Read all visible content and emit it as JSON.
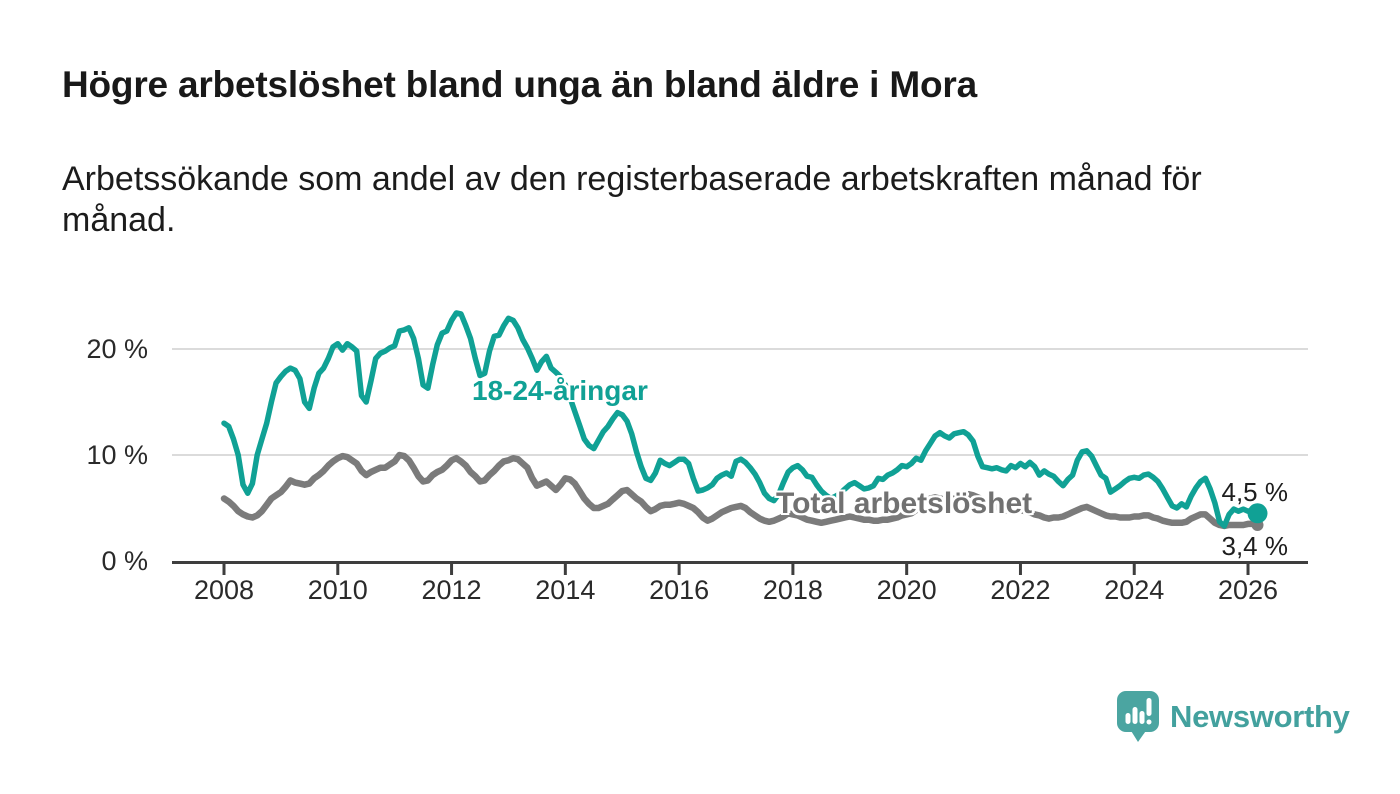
{
  "header": {
    "subtitle_lines": [
      "Arbetssökande som andel av den registerbaserade arbetskraften månad för",
      "månad."
    ]
  },
  "chart_data": {
    "type": "line",
    "title": "Högre arbetslöshet bland unga än bland äldre i Mora",
    "subtitle": "Arbetssökande som andel av den registerbaserade arbetskraften månad för månad.",
    "frequency": "monthly",
    "x_start": "2008-01",
    "x_end": "2026-03",
    "unit": "%",
    "ylim": [
      0,
      25
    ],
    "grid": "horizontal-only",
    "legend": "inline-labels",
    "x_tick_years": [
      2008,
      2010,
      2012,
      2014,
      2016,
      2018,
      2020,
      2022,
      2024,
      2026
    ],
    "y_ticks": [
      {
        "value": 0,
        "label": "0 %"
      },
      {
        "value": 10,
        "label": "10 %"
      },
      {
        "value": 20,
        "label": "20 %"
      }
    ],
    "series": [
      {
        "name": "18-24-åringar",
        "color": "#10A195",
        "end_label": "4,5 %",
        "last_value": 4.5,
        "values": [
          13.0,
          12.7,
          11.5,
          10.0,
          7.2,
          6.4,
          7.3,
          10.0,
          11.5,
          13.0,
          15.0,
          16.8,
          17.4,
          17.9,
          18.2,
          18.0,
          17.2,
          15.0,
          14.4,
          16.3,
          17.7,
          18.2,
          19.1,
          20.2,
          20.5,
          19.9,
          20.5,
          20.2,
          19.8,
          15.6,
          15.0,
          17.0,
          19.1,
          19.6,
          19.8,
          20.1,
          20.3,
          21.7,
          21.8,
          22.0,
          21.0,
          19.1,
          16.6,
          16.3,
          18.5,
          20.4,
          21.5,
          21.7,
          22.7,
          23.4,
          23.3,
          22.2,
          21.0,
          19.1,
          17.5,
          17.7,
          19.8,
          21.2,
          21.3,
          22.2,
          22.9,
          22.7,
          22.0,
          20.9,
          20.1,
          19.1,
          18.0,
          18.8,
          19.3,
          18.2,
          17.8,
          17.4,
          16.6,
          15.4,
          14.1,
          12.8,
          11.5,
          10.9,
          10.6,
          11.4,
          12.2,
          12.7,
          13.4,
          14.0,
          13.8,
          13.2,
          12.0,
          10.3,
          8.9,
          7.8,
          7.6,
          8.3,
          9.5,
          9.2,
          9.0,
          9.3,
          9.6,
          9.6,
          9.2,
          7.8,
          6.6,
          6.7,
          6.9,
          7.2,
          7.8,
          8.1,
          8.3,
          8.0,
          9.4,
          9.6,
          9.3,
          8.8,
          8.2,
          7.4,
          6.4,
          5.9,
          5.7,
          6.3,
          7.4,
          8.4,
          8.8,
          9.0,
          8.6,
          8.0,
          7.9,
          7.2,
          6.6,
          6.2,
          5.9,
          6.1,
          6.4,
          6.8,
          7.2,
          7.4,
          7.1,
          6.8,
          6.9,
          7.1,
          7.8,
          7.7,
          8.1,
          8.3,
          8.6,
          9.0,
          8.9,
          9.2,
          9.7,
          9.5,
          10.4,
          11.1,
          11.8,
          12.1,
          11.8,
          11.6,
          12.0,
          12.1,
          12.2,
          11.9,
          11.3,
          9.9,
          8.9,
          8.8,
          8.7,
          8.8,
          8.6,
          8.5,
          9.0,
          8.8,
          9.2,
          8.9,
          9.3,
          8.9,
          8.1,
          8.5,
          8.2,
          8.0,
          7.5,
          7.1,
          7.7,
          8.1,
          9.5,
          10.3,
          10.4,
          9.9,
          9.0,
          8.1,
          7.8,
          6.5,
          6.8,
          7.1,
          7.5,
          7.8,
          7.9,
          7.8,
          8.1,
          8.2,
          7.9,
          7.5,
          6.8,
          6.0,
          5.2,
          5.0,
          5.4,
          5.1,
          6.1,
          6.9,
          7.5,
          7.8,
          6.8,
          5.5,
          3.7,
          3.3,
          4.4,
          4.9,
          4.7,
          4.9,
          4.7,
          4.8,
          4.5
        ]
      },
      {
        "name": "Total arbetslöshet",
        "color": "#7B7B7B",
        "end_label": "3,4 %",
        "last_value": 3.4,
        "values": [
          5.9,
          5.6,
          5.2,
          4.7,
          4.4,
          4.2,
          4.1,
          4.3,
          4.7,
          5.3,
          5.9,
          6.2,
          6.5,
          7.0,
          7.6,
          7.4,
          7.3,
          7.2,
          7.3,
          7.8,
          8.1,
          8.5,
          9.0,
          9.4,
          9.7,
          9.9,
          9.8,
          9.5,
          9.2,
          8.5,
          8.1,
          8.4,
          8.6,
          8.8,
          8.8,
          9.1,
          9.4,
          10.0,
          9.9,
          9.5,
          8.8,
          8.0,
          7.5,
          7.6,
          8.1,
          8.4,
          8.6,
          9.0,
          9.5,
          9.7,
          9.4,
          9.0,
          8.4,
          8.0,
          7.5,
          7.6,
          8.1,
          8.5,
          9.0,
          9.4,
          9.5,
          9.7,
          9.6,
          9.2,
          8.8,
          7.8,
          7.1,
          7.3,
          7.5,
          7.1,
          6.7,
          7.2,
          7.8,
          7.7,
          7.3,
          6.6,
          5.9,
          5.4,
          5.0,
          5.0,
          5.2,
          5.4,
          5.8,
          6.2,
          6.6,
          6.7,
          6.3,
          5.9,
          5.6,
          5.1,
          4.7,
          4.9,
          5.2,
          5.3,
          5.3,
          5.4,
          5.5,
          5.4,
          5.2,
          5.0,
          4.6,
          4.1,
          3.8,
          4.0,
          4.3,
          4.6,
          4.8,
          5.0,
          5.1,
          5.2,
          5.0,
          4.6,
          4.3,
          4.0,
          3.8,
          3.7,
          3.8,
          4.0,
          4.2,
          4.5,
          4.4,
          4.3,
          4.1,
          3.9,
          3.8,
          3.7,
          3.6,
          3.7,
          3.8,
          3.9,
          4.0,
          4.1,
          4.2,
          4.1,
          4.0,
          3.9,
          3.9,
          3.8,
          3.8,
          3.9,
          3.9,
          4.0,
          4.1,
          4.3,
          4.4,
          4.5,
          4.8,
          5.4,
          5.7,
          5.9,
          6.0,
          5.9,
          5.8,
          5.8,
          5.9,
          6.1,
          6.3,
          6.3,
          6.2,
          6.0,
          5.8,
          5.5,
          5.3,
          5.1,
          4.9,
          4.8,
          4.7,
          4.7,
          4.8,
          4.7,
          4.6,
          4.4,
          4.3,
          4.1,
          4.0,
          4.1,
          4.1,
          4.2,
          4.4,
          4.6,
          4.8,
          5.0,
          5.1,
          4.9,
          4.7,
          4.5,
          4.3,
          4.2,
          4.2,
          4.1,
          4.1,
          4.1,
          4.2,
          4.2,
          4.3,
          4.3,
          4.1,
          4.0,
          3.8,
          3.7,
          3.6,
          3.6,
          3.6,
          3.7,
          4.0,
          4.2,
          4.4,
          4.4,
          4.0,
          3.6,
          3.4,
          3.3,
          3.4,
          3.4,
          3.4,
          3.4,
          3.5,
          3.5,
          3.4
        ]
      }
    ]
  },
  "labels": {
    "series_youth": "18-24-åringar",
    "series_total": "Total arbetslöshet",
    "end_value_youth": "4,5 %",
    "end_value_total": "3,4 %"
  },
  "footer": {
    "wordmark": "Newsworthy"
  },
  "colors": {
    "youth_line": "#10A195",
    "total_line": "#7B7B7B",
    "brand_teal": "#4BA5A1",
    "gridline": "#DBDBDB",
    "axis": "#3E3E3E"
  }
}
